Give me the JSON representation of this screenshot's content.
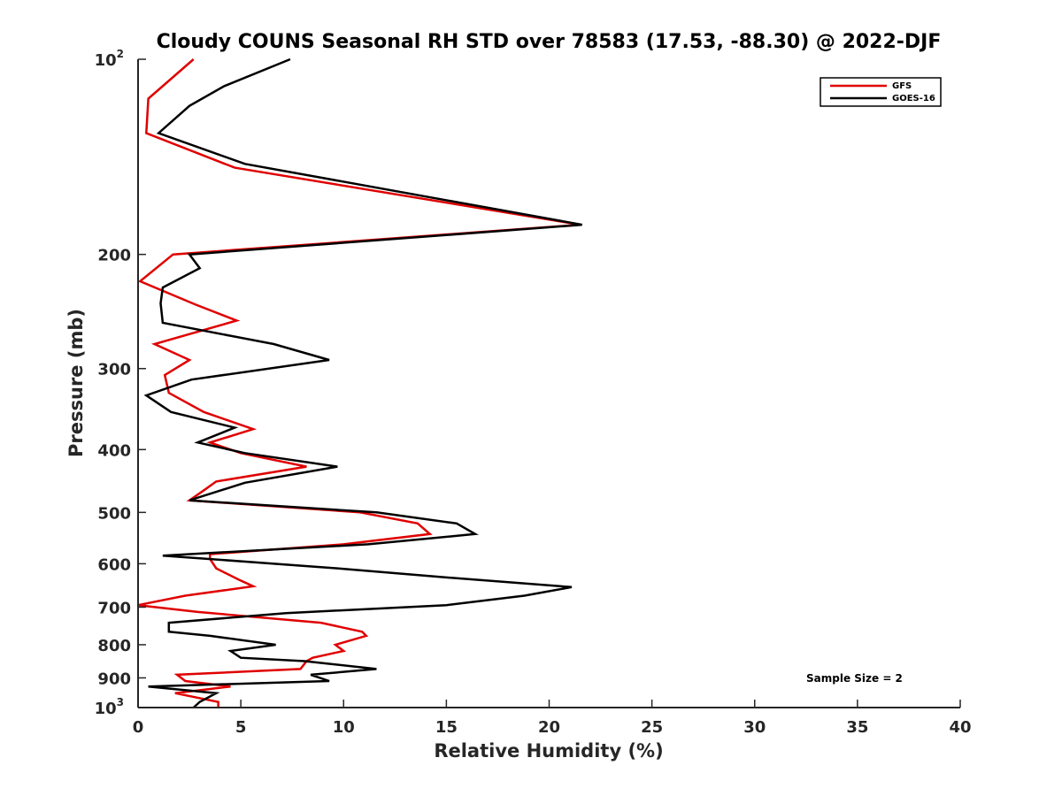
{
  "chart_data": {
    "type": "line",
    "title": "Cloudy COUNS Seasonal RH STD over 78583 (17.53, -88.30) @ 2022-DJF",
    "xlabel": "Relative Humidity (%)",
    "ylabel": "Pressure (mb)",
    "xlim": [
      0,
      40
    ],
    "ylim": [
      100,
      1000
    ],
    "yscale": "log",
    "y_reversed": true,
    "xticks": [
      0,
      5,
      10,
      15,
      20,
      25,
      30,
      35,
      40
    ],
    "xtick_labels": [
      "0",
      "5",
      "10",
      "15",
      "20",
      "25",
      "30",
      "35",
      "40"
    ],
    "yticks": [
      {
        "value": 100,
        "base": "10",
        "exp": "2"
      },
      {
        "value": 200,
        "label": "200"
      },
      {
        "value": 300,
        "label": "300"
      },
      {
        "value": 400,
        "label": "400"
      },
      {
        "value": 500,
        "label": "500"
      },
      {
        "value": 600,
        "label": "600"
      },
      {
        "value": 700,
        "label": "700"
      },
      {
        "value": 800,
        "label": "800"
      },
      {
        "value": 900,
        "label": "900"
      },
      {
        "value": 1000,
        "base": "10",
        "exp": "3"
      }
    ],
    "legend_position": "top-right",
    "annotation": "Sample Size = 2",
    "series": [
      {
        "name": "GFS",
        "color": "#e00000",
        "points": [
          [
            2.7,
            100
          ],
          [
            0.5,
            115
          ],
          [
            0.4,
            130
          ],
          [
            4.7,
            147
          ],
          [
            21.5,
            180
          ],
          [
            1.7,
            200
          ],
          [
            0.1,
            220
          ],
          [
            2.8,
            239
          ],
          [
            4.8,
            253
          ],
          [
            0.8,
            275
          ],
          [
            2.5,
            291
          ],
          [
            1.3,
            307
          ],
          [
            1.5,
            327
          ],
          [
            3.2,
            350
          ],
          [
            5.6,
            372
          ],
          [
            3.5,
            390
          ],
          [
            5.0,
            405
          ],
          [
            8.2,
            425
          ],
          [
            3.8,
            448
          ],
          [
            3.3,
            460
          ],
          [
            2.5,
            479
          ],
          [
            10.8,
            500
          ],
          [
            13.6,
            520
          ],
          [
            14.2,
            540
          ],
          [
            10.0,
            560
          ],
          [
            3.5,
            580
          ],
          [
            3.5,
            590
          ],
          [
            3.8,
            610
          ],
          [
            4.9,
            635
          ],
          [
            5.6,
            650
          ],
          [
            2.3,
            672
          ],
          [
            0.0,
            695
          ],
          [
            2.9,
            712
          ],
          [
            8.9,
            740
          ],
          [
            10.9,
            764
          ],
          [
            11.1,
            775
          ],
          [
            9.6,
            800
          ],
          [
            10.0,
            818
          ],
          [
            8.5,
            838
          ],
          [
            8.2,
            848
          ],
          [
            7.9,
            872
          ],
          [
            1.9,
            890
          ],
          [
            2.3,
            910
          ],
          [
            4.5,
            928
          ],
          [
            1.8,
            950
          ],
          [
            3.9,
            980
          ],
          [
            3.9,
            1000
          ]
        ]
      },
      {
        "name": "GOES-16",
        "color": "#000000",
        "points": [
          [
            7.4,
            100
          ],
          [
            4.2,
            110
          ],
          [
            2.5,
            118
          ],
          [
            1.0,
            130
          ],
          [
            5.2,
            145
          ],
          [
            21.6,
            180
          ],
          [
            2.5,
            200
          ],
          [
            3.0,
            210
          ],
          [
            1.2,
            225
          ],
          [
            1.1,
            238
          ],
          [
            1.2,
            255
          ],
          [
            6.6,
            275
          ],
          [
            9.3,
            291
          ],
          [
            2.6,
            312
          ],
          [
            0.4,
            330
          ],
          [
            1.6,
            350
          ],
          [
            4.7,
            370
          ],
          [
            2.9,
            390
          ],
          [
            5.2,
            405
          ],
          [
            9.7,
            425
          ],
          [
            5.2,
            450
          ],
          [
            2.5,
            479
          ],
          [
            11.6,
            500
          ],
          [
            15.5,
            520
          ],
          [
            16.4,
            540
          ],
          [
            11.2,
            560
          ],
          [
            1.2,
            583
          ],
          [
            9.7,
            610
          ],
          [
            15.0,
            630
          ],
          [
            21.1,
            652
          ],
          [
            18.8,
            672
          ],
          [
            15.0,
            695
          ],
          [
            7.2,
            715
          ],
          [
            1.5,
            740
          ],
          [
            1.5,
            764
          ],
          [
            3.5,
            775
          ],
          [
            6.7,
            800
          ],
          [
            4.5,
            818
          ],
          [
            5.0,
            838
          ],
          [
            8.1,
            848
          ],
          [
            11.6,
            872
          ],
          [
            8.4,
            890
          ],
          [
            9.3,
            910
          ],
          [
            0.5,
            928
          ],
          [
            3.8,
            950
          ],
          [
            3.0,
            980
          ],
          [
            2.7,
            1000
          ]
        ]
      }
    ]
  }
}
